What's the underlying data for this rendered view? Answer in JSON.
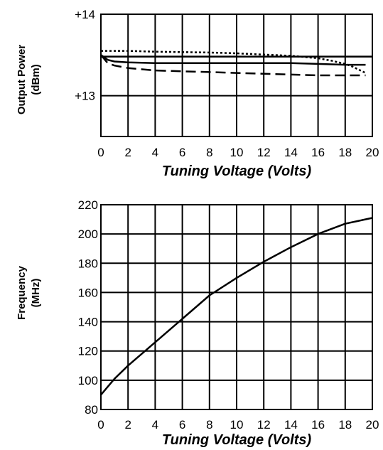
{
  "chart_data": [
    {
      "type": "line",
      "ylabel": [
        "Output Power",
        "(dBm)"
      ],
      "xlabel": "Tuning Voltage (Volts)",
      "xlim": [
        0,
        20
      ],
      "ylim": [
        12.5,
        14
      ],
      "x_ticks": [
        "0",
        "2",
        "4",
        "6",
        "8",
        "10",
        "12",
        "14",
        "16",
        "18",
        "20"
      ],
      "y_ticks": [
        {
          "value": 14,
          "label": "+14"
        },
        {
          "value": 13,
          "label": "+13"
        }
      ],
      "grid": true,
      "series": [
        {
          "style": "dotted",
          "x": [
            0,
            1,
            2,
            4,
            6,
            8,
            10,
            12,
            14,
            16,
            17,
            18,
            18.5,
            19,
            19.5
          ],
          "y": [
            13.55,
            13.55,
            13.55,
            13.54,
            13.535,
            13.53,
            13.52,
            13.505,
            13.49,
            13.46,
            13.43,
            13.39,
            13.36,
            13.32,
            13.28
          ]
        },
        {
          "style": "solid",
          "x": [
            0,
            0.5,
            1,
            2,
            4,
            6,
            8,
            10,
            12,
            14,
            16,
            18,
            19.5
          ],
          "y": [
            13.5,
            13.44,
            13.42,
            13.41,
            13.4,
            13.4,
            13.4,
            13.4,
            13.4,
            13.4,
            13.39,
            13.38,
            13.38
          ]
        },
        {
          "style": "dashed",
          "x": [
            0,
            0.5,
            1,
            2,
            4,
            6,
            8,
            10,
            12,
            14,
            16,
            18,
            19.5
          ],
          "y": [
            13.5,
            13.4,
            13.37,
            13.34,
            13.31,
            13.3,
            13.29,
            13.28,
            13.27,
            13.26,
            13.25,
            13.25,
            13.25
          ]
        },
        {
          "style": "solid",
          "x": [
            0,
            20
          ],
          "y": [
            13.48,
            13.48
          ]
        }
      ]
    },
    {
      "type": "line",
      "ylabel": [
        "Frequency",
        "(MHz)"
      ],
      "xlabel": "Tuning Voltage (Volts)",
      "xlim": [
        0,
        20
      ],
      "ylim": [
        80,
        220
      ],
      "x_ticks": [
        "0",
        "2",
        "4",
        "6",
        "8",
        "10",
        "12",
        "14",
        "16",
        "18",
        "20"
      ],
      "y_ticks": [
        {
          "value": 220,
          "label": "220"
        },
        {
          "value": 200,
          "label": "200"
        },
        {
          "value": 180,
          "label": "180"
        },
        {
          "value": 160,
          "label": "160"
        },
        {
          "value": 140,
          "label": "140"
        },
        {
          "value": 120,
          "label": "120"
        },
        {
          "value": 100,
          "label": "100"
        },
        {
          "value": 80,
          "label": "80"
        }
      ],
      "grid": true,
      "series": [
        {
          "style": "solid",
          "x": [
            0,
            1,
            2,
            4,
            6,
            8,
            10,
            12,
            14,
            16,
            18,
            19,
            20
          ],
          "y": [
            90,
            101,
            110,
            126,
            142,
            158,
            170,
            181,
            191,
            200,
            207,
            209,
            211
          ]
        }
      ]
    }
  ]
}
